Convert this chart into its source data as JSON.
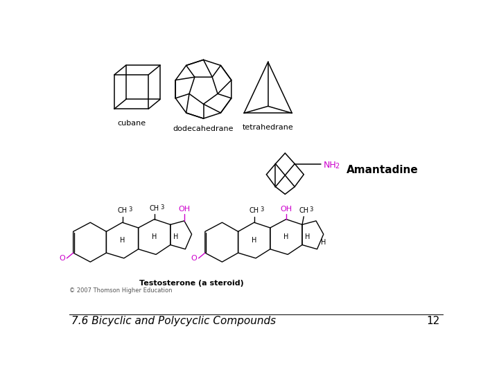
{
  "title_text": "7.6 Bicyclic and Polycyclic Compounds",
  "page_number": "12",
  "copyright": "© 2007 Thomson Higher Education",
  "bg_color": "#ffffff",
  "title_color": "#000000",
  "title_fontsize": 11,
  "page_num_fontsize": 11,
  "nh2_color": "#cc00cc",
  "oh_color": "#cc00cc",
  "o_color": "#cc00cc",
  "fig_width": 7.2,
  "fig_height": 5.4,
  "dpi": 100
}
